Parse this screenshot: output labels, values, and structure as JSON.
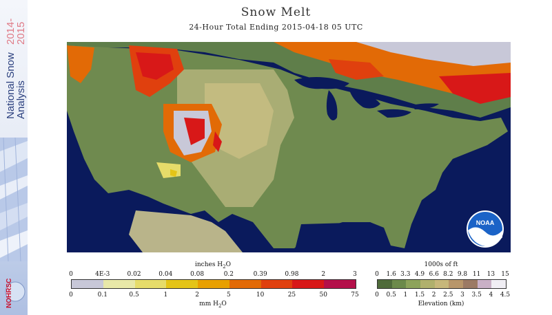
{
  "title": "Snow Melt",
  "subtitle": "24-Hour Total Ending 2015-04-18 05 UTC",
  "sidebar": {
    "title_line1": "National Snow",
    "title_line2": "Analysis",
    "years_top": "2014-",
    "years_bottom": "2015",
    "logo_text": "NOHRSC"
  },
  "noaa_logo_text": "NOAA",
  "melt_scale": {
    "top_unit": "inches H",
    "top_unit_sub": "2",
    "top_unit_tail": "O",
    "inch_ticks": [
      "0",
      "4E-3",
      "0.02",
      "0.04",
      "0.08",
      "0.2",
      "0.39",
      "0.98",
      "2",
      "3"
    ],
    "mm_ticks": [
      "0",
      "0.1",
      "0.5",
      "1",
      "2",
      "5",
      "10",
      "25",
      "50",
      "75"
    ],
    "bottom_unit": "mm H",
    "bottom_unit_sub": "2",
    "bottom_unit_tail": "O",
    "colors": [
      "#c8c8d8",
      "#e8e8a8",
      "#e6dc6a",
      "#e4c417",
      "#e8a000",
      "#e26a06",
      "#e0400e",
      "#d81818",
      "#b4104a"
    ]
  },
  "elev_scale": {
    "top_unit": "1000s of ft",
    "ft_ticks": [
      "0",
      "1.6",
      "3.3",
      "4.9",
      "6.6",
      "8.2",
      "9.8",
      "11",
      "13",
      "15"
    ],
    "km_ticks": [
      "0",
      "0.5",
      "1",
      "1.5",
      "2",
      "2.5",
      "3",
      "3.5",
      "4",
      "4.5"
    ],
    "bottom_unit": "Elevation (km)",
    "colors": [
      "#4f6b3a",
      "#6c8a4a",
      "#8da35a",
      "#b0b06c",
      "#c7b77a",
      "#b8966a",
      "#9c7a64",
      "#c9b0c6",
      "#f0eef4"
    ]
  }
}
